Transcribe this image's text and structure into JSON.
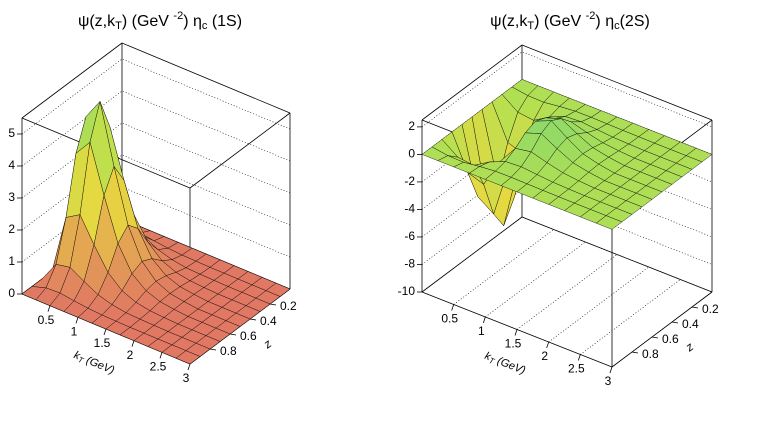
{
  "chart_data": [
    {
      "type": "surface",
      "title": [
        "ψ(z,k",
        "T",
        ") (GeV ",
        "-2",
        ") η",
        "c",
        " (1S)"
      ],
      "xlabel": [
        "k",
        "T",
        " (GeV)"
      ],
      "ylabel": "z",
      "x": [
        0,
        0.25,
        0.5,
        0.75,
        1,
        1.25,
        1.5,
        1.75,
        2,
        2.25,
        2.5,
        2.75,
        3
      ],
      "y": [
        0,
        0.1,
        0.2,
        0.3,
        0.4,
        0.5,
        0.6,
        0.7,
        0.8,
        0.9,
        1
      ],
      "values": [
        [
          0,
          0,
          0,
          0,
          0,
          0,
          0,
          0,
          0,
          0,
          0
        ],
        [
          0,
          0.14,
          0.64,
          1.87,
          3.64,
          4.55,
          3.64,
          1.87,
          0.64,
          0.14,
          0
        ],
        [
          0,
          0.16,
          0.73,
          2.14,
          4.17,
          5.21,
          4.17,
          2.14,
          0.73,
          0.16,
          0
        ],
        [
          0,
          0.1,
          0.47,
          1.38,
          2.69,
          3.36,
          2.69,
          1.38,
          0.47,
          0.1,
          0
        ],
        [
          0,
          0.05,
          0.24,
          0.7,
          1.37,
          1.71,
          1.37,
          0.7,
          0.24,
          0.05,
          0
        ],
        [
          0,
          0.02,
          0.11,
          0.31,
          0.61,
          0.76,
          0.61,
          0.31,
          0.11,
          0.02,
          0
        ],
        [
          0,
          0.01,
          0.04,
          0.13,
          0.26,
          0.32,
          0.26,
          0.13,
          0.04,
          0.01,
          0
        ],
        [
          0,
          0,
          0.02,
          0.05,
          0.1,
          0.12,
          0.1,
          0.05,
          0.02,
          0,
          0
        ],
        [
          0,
          0,
          0.01,
          0.02,
          0.04,
          0.05,
          0.04,
          0.02,
          0.01,
          0,
          0
        ],
        [
          0,
          0,
          0,
          0,
          0,
          0,
          0,
          0,
          0,
          0,
          0
        ],
        [
          0,
          0,
          0,
          0,
          0,
          0,
          0,
          0,
          0,
          0,
          0
        ],
        [
          0,
          0,
          0,
          0,
          0,
          0,
          0,
          0,
          0,
          0,
          0
        ],
        [
          0,
          0,
          0,
          0,
          0,
          0,
          0,
          0,
          0,
          0,
          0
        ]
      ],
      "xlim": [
        0,
        3
      ],
      "xticks": [
        0.5,
        1,
        1.5,
        2,
        2.5,
        3
      ],
      "ylim": [
        0,
        1
      ],
      "yticks": [
        0.2,
        0.4,
        0.6,
        0.8
      ],
      "zlim": [
        0,
        5.5
      ],
      "zticks": [
        0,
        1,
        2,
        3,
        4,
        5
      ],
      "grid": true
    },
    {
      "type": "surface",
      "title": [
        "ψ(z,k",
        "T",
        ") (GeV ",
        "-2",
        ")  η",
        "c",
        "(2S)"
      ],
      "xlabel": [
        "k",
        "T",
        " (GeV)"
      ],
      "ylabel": "z",
      "x": [
        0,
        0.25,
        0.5,
        0.75,
        1,
        1.25,
        1.5,
        1.75,
        2,
        2.25,
        2.5,
        2.75,
        3
      ],
      "y": [
        0,
        0.1,
        0.2,
        0.3,
        0.4,
        0.5,
        0.6,
        0.7,
        0.8,
        0.9,
        1
      ],
      "values": [
        [
          0,
          0,
          0,
          0,
          0,
          0,
          0,
          0,
          0,
          0,
          0
        ],
        [
          0,
          -0.18,
          -0.84,
          -2.5,
          -4.8,
          -6,
          -4.8,
          -2.5,
          -0.84,
          -0.18,
          0
        ],
        [
          0,
          -0.21,
          -0.98,
          -2.9,
          -5.6,
          -7,
          -5.6,
          -2.9,
          -0.98,
          -0.21,
          0
        ],
        [
          0,
          -0.06,
          -0.28,
          -0.82,
          -1.6,
          -2,
          -1.6,
          -0.82,
          -0.28,
          -0.06,
          0
        ],
        [
          0,
          0.05,
          0.21,
          0.62,
          1.2,
          1.5,
          1.2,
          0.62,
          0.21,
          0.05,
          0
        ],
        [
          0,
          0.06,
          0.28,
          0.82,
          1.6,
          2,
          1.6,
          0.82,
          0.28,
          0.06,
          0
        ],
        [
          0,
          0.04,
          0.17,
          0.49,
          0.96,
          1.2,
          0.96,
          0.49,
          0.17,
          0.04,
          0
        ],
        [
          0,
          0.02,
          0.07,
          0.21,
          0.4,
          0.5,
          0.4,
          0.21,
          0.07,
          0.02,
          0
        ],
        [
          0,
          0.01,
          0.03,
          0.08,
          0.16,
          0.2,
          0.16,
          0.08,
          0.03,
          0.01,
          0
        ],
        [
          0,
          0,
          0,
          0,
          0,
          0,
          0,
          0,
          0,
          0,
          0
        ],
        [
          0,
          0,
          0,
          0,
          0,
          0,
          0,
          0,
          0,
          0,
          0
        ],
        [
          0,
          0,
          0,
          0,
          0,
          0,
          0,
          0,
          0,
          0,
          0
        ],
        [
          0,
          0,
          0,
          0,
          0,
          0,
          0,
          0,
          0,
          0,
          0
        ]
      ],
      "xlim": [
        0,
        3
      ],
      "xticks": [
        0.5,
        1,
        1.5,
        2,
        2.5,
        3
      ],
      "ylim": [
        0,
        1
      ],
      "yticks": [
        0.2,
        0.4,
        0.6,
        0.8
      ],
      "zlim": [
        -10,
        2.5
      ],
      "zticks": [
        -10,
        -8,
        -6,
        -4,
        -2,
        0,
        2
      ],
      "grid": true
    }
  ]
}
